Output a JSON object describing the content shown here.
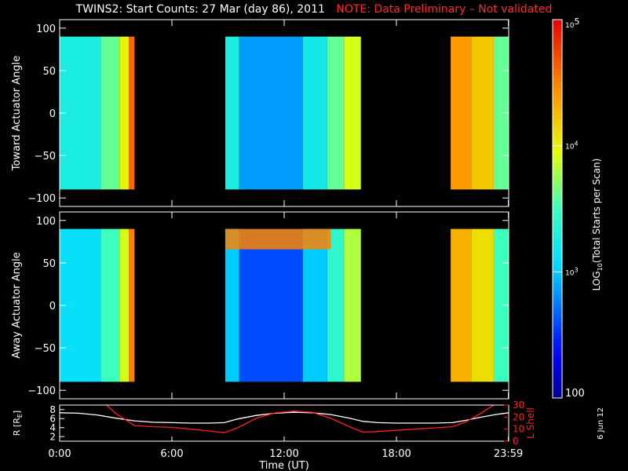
{
  "header": {
    "title": "TWINS2: Start Counts: 27 Mar (day  86), 2011",
    "note": "NOTE: Data Preliminary – Not validated"
  },
  "date_stamp": "6 Jun 12",
  "chart_data": [
    {
      "type": "heatmap",
      "ylabel": "Toward Actuator Angle",
      "ylim": [
        -110,
        110
      ],
      "yticks": [
        100,
        50,
        0,
        -50,
        -100
      ],
      "data_angle_range": [
        -90,
        90
      ],
      "xlim": [
        0,
        24
      ],
      "coverage_hours": [
        [
          0,
          4.0
        ],
        [
          8.85,
          16.1
        ],
        [
          20.9,
          24
        ]
      ],
      "rows": [
        {
          "range": [
            0,
            2.2
          ],
          "log_value": 3.25
        },
        {
          "range": [
            2.2,
            3.2
          ],
          "log_value": 3.6
        },
        {
          "range": [
            3.2,
            3.7
          ],
          "log_value": 4.0
        },
        {
          "range": [
            3.7,
            4.0
          ],
          "log_value": 4.6
        },
        {
          "range": [
            8.85,
            9.6
          ],
          "log_value": 3.25
        },
        {
          "range": [
            9.6,
            13.0
          ],
          "log_value": 2.85
        },
        {
          "range": [
            13.0,
            14.3
          ],
          "log_value": 3.2
        },
        {
          "range": [
            14.3,
            15.2
          ],
          "log_value": 3.6
        },
        {
          "range": [
            15.2,
            16.1
          ],
          "log_value": 3.9
        },
        {
          "range": [
            20.9,
            22.0
          ],
          "log_value": 4.4
        },
        {
          "range": [
            22.0,
            23.2
          ],
          "log_value": 4.2
        },
        {
          "range": [
            23.2,
            24
          ],
          "log_value": 3.6
        }
      ]
    },
    {
      "type": "heatmap",
      "ylabel": "Away Actuator Angle",
      "ylim": [
        -110,
        110
      ],
      "yticks": [
        100,
        50,
        0,
        -50,
        -100
      ],
      "data_angle_range": [
        -90,
        90
      ],
      "xlim": [
        0,
        24
      ],
      "coverage_hours": [
        [
          0,
          4.0
        ],
        [
          8.85,
          16.1
        ],
        [
          20.9,
          24
        ]
      ],
      "rows": [
        {
          "range": [
            0,
            2.2
          ],
          "log_value": 3.1
        },
        {
          "range": [
            2.2,
            3.2
          ],
          "log_value": 3.5
        },
        {
          "range": [
            3.2,
            3.7
          ],
          "log_value": 3.9
        },
        {
          "range": [
            3.7,
            4.0
          ],
          "log_value": 4.5
        },
        {
          "range": [
            8.85,
            9.6
          ],
          "log_value": 3.0
        },
        {
          "range": [
            9.6,
            13.0
          ],
          "log_value": 2.6
        },
        {
          "range": [
            13.0,
            14.3
          ],
          "log_value": 3.0
        },
        {
          "range": [
            14.3,
            15.2
          ],
          "log_value": 3.4
        },
        {
          "range": [
            15.2,
            16.1
          ],
          "log_value": 3.8
        },
        {
          "range": [
            20.9,
            22.0
          ],
          "log_value": 4.3
        },
        {
          "range": [
            22.0,
            23.2
          ],
          "log_value": 4.1
        },
        {
          "range": [
            23.2,
            24
          ],
          "log_value": 3.5
        }
      ],
      "band": {
        "range": [
          8.85,
          14.5
        ],
        "angle": [
          66,
          90
        ],
        "log_value": 4.5
      }
    },
    {
      "type": "line",
      "xlabel": "Time (UT)",
      "xlim": [
        0,
        24
      ],
      "xticks": [
        0,
        6,
        12,
        18,
        23.983
      ],
      "xtick_labels": [
        "0:00",
        "6:00",
        "12:00",
        "18:00",
        "23:59"
      ],
      "ylabel_left": "R [R",
      "ylabel_left_sub": "E",
      "ylabel_left_end": "]",
      "ylim_left": [
        1,
        9
      ],
      "yticks_left": [
        2,
        4,
        6,
        8
      ],
      "ylabel_right": "L Shell",
      "ylim_right": [
        0,
        30
      ],
      "yticks_right": [
        0,
        10,
        20,
        30
      ],
      "series": [
        {
          "axis": "left",
          "color": "#ffffff",
          "x": [
            0,
            1,
            2,
            3,
            4,
            5,
            6,
            7,
            8,
            8.8,
            9.5,
            10.5,
            11.5,
            12.5,
            13.5,
            14.5,
            15.5,
            16.2,
            17,
            18,
            19,
            20,
            21,
            21.7,
            22.5,
            23.3,
            24
          ],
          "y": [
            7.3,
            7.2,
            6.8,
            6.1,
            5.5,
            5.2,
            5.1,
            5.0,
            5.0,
            5.1,
            5.9,
            6.7,
            7.2,
            7.4,
            7.3,
            6.9,
            6.1,
            5.4,
            5.1,
            5.0,
            5.0,
            5.0,
            5.1,
            5.6,
            6.3,
            6.9,
            7.3
          ]
        },
        {
          "axis": "right",
          "color": "#ff2020",
          "x": [
            2.5,
            3,
            4,
            5,
            6,
            7,
            8,
            8.8,
            9.5,
            10.5,
            11.5,
            12.5,
            13.5,
            14.5,
            15.5,
            16.2,
            17,
            18,
            19,
            20,
            21,
            21.7,
            22.5,
            23.2
          ],
          "y": [
            30,
            23,
            13,
            12,
            11.5,
            10,
            8.5,
            7,
            11,
            19,
            23.5,
            25,
            24,
            19,
            12,
            7.5,
            8,
            9,
            10,
            11,
            12,
            16,
            23,
            30
          ]
        }
      ]
    }
  ],
  "colorbar": {
    "label": "LOG",
    "label_sub": "10",
    "label_rest": "(Total Starts per Scan)",
    "range_log": [
      2,
      5
    ],
    "ticks": [
      {
        "log": 5,
        "base": "10",
        "exp": "5"
      },
      {
        "log": 4,
        "base": "10",
        "exp": "4"
      },
      {
        "log": 3,
        "base": "10",
        "exp": "3"
      },
      {
        "log": 2,
        "base": "100",
        "exp": ""
      }
    ]
  }
}
